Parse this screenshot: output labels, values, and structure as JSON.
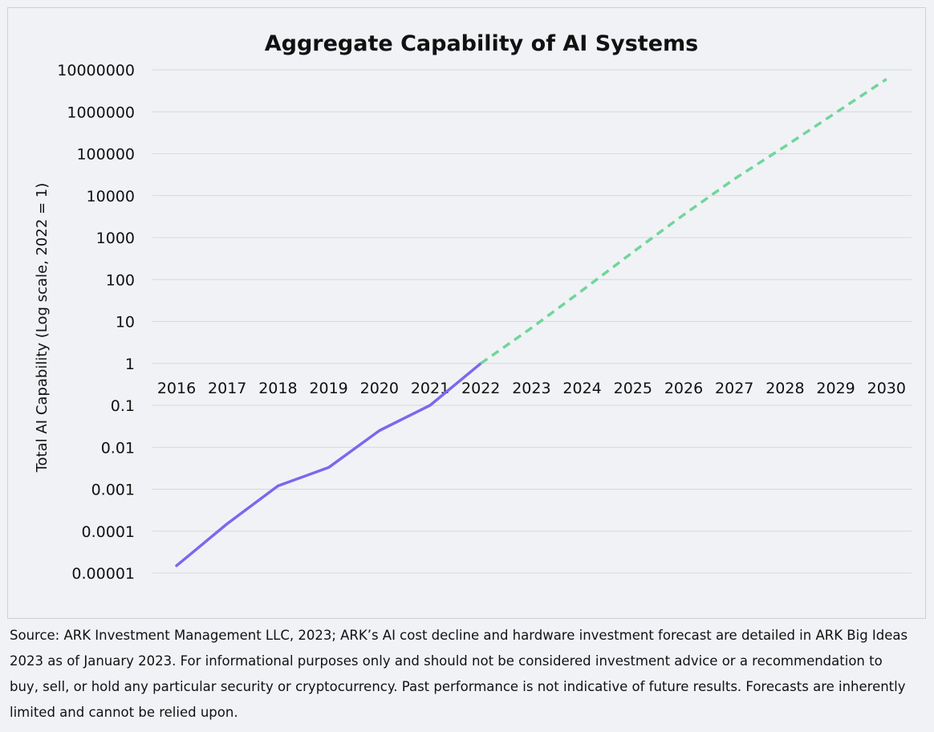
{
  "chart_data": {
    "type": "line",
    "title": "Aggregate Capability of AI Systems",
    "xlabel": "",
    "ylabel": "Total AI Capability (Log scale, 2022 = 1)",
    "yscale": "log",
    "ylim": [
      1e-05,
      10000000
    ],
    "yticks": [
      "10000000",
      "1000000",
      "100000",
      "10000",
      "1000",
      "100",
      "10",
      "1",
      "0.1",
      "0.01",
      "0.001",
      "0.0001",
      "0.00001"
    ],
    "categories": [
      "2016",
      "2017",
      "2018",
      "2019",
      "2020",
      "2021",
      "2022",
      "2023",
      "2024",
      "2025",
      "2026",
      "2027",
      "2028",
      "2029",
      "2030"
    ],
    "grid": true,
    "series": [
      {
        "style": "solid",
        "color": "#7b68ee",
        "x": [
          "2016",
          "2017",
          "2018",
          "2019",
          "2020",
          "2021",
          "2022"
        ],
        "y": [
          1.5e-05,
          0.00015,
          0.0012,
          0.0033,
          0.025,
          0.1,
          1
        ]
      },
      {
        "style": "dashed",
        "color": "#6fd69a",
        "x": [
          "2022",
          "2023",
          "2024",
          "2025",
          "2026",
          "2027",
          "2028",
          "2029",
          "2030"
        ],
        "y": [
          1,
          7,
          55,
          450,
          3500,
          25000,
          150000,
          950000,
          6000000
        ]
      }
    ]
  },
  "source_note": "Source: ARK Investment Management LLC, 2023; ARK’s AI cost decline and hardware investment forecast are detailed in ARK Big Ideas 2023 as of January 2023. For informational purposes only and should not be considered investment advice or a recommendation to buy, sell, or hold any particular security or cryptocurrency. Past performance is not indicative of future results. Forecasts are inherently limited and cannot be relied upon."
}
